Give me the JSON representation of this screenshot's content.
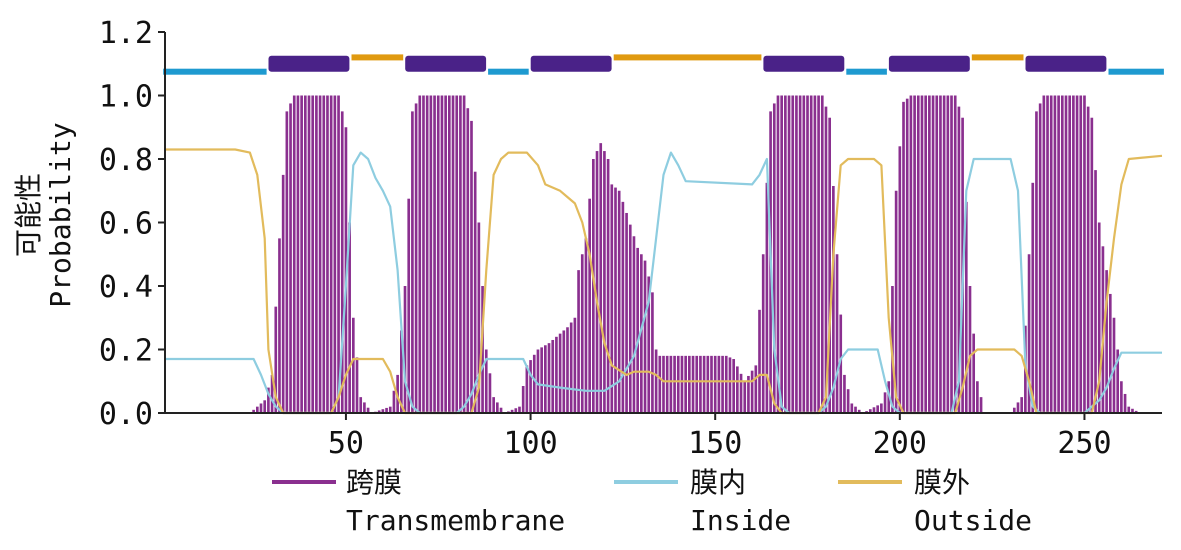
{
  "chart_data": {
    "type": "area",
    "title": "",
    "xlabel": "",
    "ylabel_cn": "可能性",
    "ylabel_en": "Probability",
    "xlim": [
      1,
      271
    ],
    "ylim": [
      0,
      1.2
    ],
    "xticks": [
      50,
      100,
      150,
      200,
      250
    ],
    "yticks": [
      "0.0",
      "0.2",
      "0.4",
      "0.6",
      "0.8",
      "1.0",
      "1.2"
    ],
    "grid": false,
    "legend_position": "bottom",
    "colors": {
      "transmembrane": "#8a2f8f",
      "inside": "#8ecde0",
      "outside": "#e2bb5c",
      "topology_inside": "#1e9ad0",
      "topology_outside": "#e09a10",
      "topology_tm": "#4a2288"
    },
    "legend": [
      {
        "key": "transmembrane",
        "label_cn": "跨膜",
        "label_en": "Transmembrane"
      },
      {
        "key": "inside",
        "label_cn": "膜内",
        "label_en": "Inside"
      },
      {
        "key": "outside",
        "label_cn": "膜外",
        "label_en": "Outside"
      }
    ],
    "topology": [
      {
        "type": "inside",
        "start": 1,
        "end": 28
      },
      {
        "type": "tm",
        "start": 29,
        "end": 51
      },
      {
        "type": "outside",
        "start": 52,
        "end": 65
      },
      {
        "type": "tm",
        "start": 66,
        "end": 88
      },
      {
        "type": "inside",
        "start": 89,
        "end": 99
      },
      {
        "type": "tm",
        "start": 100,
        "end": 122
      },
      {
        "type": "outside",
        "start": 123,
        "end": 162
      },
      {
        "type": "tm",
        "start": 163,
        "end": 185
      },
      {
        "type": "inside",
        "start": 186,
        "end": 196
      },
      {
        "type": "tm",
        "start": 197,
        "end": 219
      },
      {
        "type": "outside",
        "start": 220,
        "end": 233
      },
      {
        "type": "tm",
        "start": 234,
        "end": 256
      },
      {
        "type": "inside",
        "start": 257,
        "end": 271
      }
    ],
    "series": [
      {
        "key": "transmembrane",
        "points": [
          [
            1,
            0
          ],
          [
            24,
            0
          ],
          [
            28,
            0.04
          ],
          [
            30,
            0.12
          ],
          [
            32,
            0.55
          ],
          [
            34,
            0.95
          ],
          [
            36,
            1.0
          ],
          [
            48,
            1.0
          ],
          [
            50,
            0.9
          ],
          [
            52,
            0.3
          ],
          [
            54,
            0.05
          ],
          [
            57,
            0.0
          ],
          [
            62,
            0.02
          ],
          [
            64,
            0.12
          ],
          [
            66,
            0.4
          ],
          [
            68,
            0.95
          ],
          [
            70,
            1.0
          ],
          [
            82,
            1.0
          ],
          [
            84,
            0.92
          ],
          [
            86,
            0.6
          ],
          [
            88,
            0.2
          ],
          [
            90,
            0.05
          ],
          [
            93,
            0.0
          ],
          [
            97,
            0.02
          ],
          [
            99,
            0.15
          ],
          [
            102,
            0.2
          ],
          [
            105,
            0.22
          ],
          [
            110,
            0.27
          ],
          [
            112,
            0.3
          ],
          [
            113,
            0.45
          ],
          [
            115,
            0.55
          ],
          [
            117,
            0.8
          ],
          [
            119,
            0.85
          ],
          [
            121,
            0.8
          ],
          [
            122,
            0.72
          ],
          [
            124,
            0.7
          ],
          [
            126,
            0.63
          ],
          [
            129,
            0.52
          ],
          [
            131,
            0.48
          ],
          [
            133,
            0.38
          ],
          [
            134,
            0.2
          ],
          [
            135,
            0.18
          ],
          [
            153,
            0.18
          ],
          [
            155,
            0.17
          ],
          [
            158,
            0.1
          ],
          [
            161,
            0.15
          ],
          [
            163,
            0.5
          ],
          [
            165,
            0.95
          ],
          [
            167,
            1.0
          ],
          [
            179,
            1.0
          ],
          [
            181,
            0.93
          ],
          [
            183,
            0.5
          ],
          [
            185,
            0.12
          ],
          [
            187,
            0.03
          ],
          [
            190,
            0.0
          ],
          [
            195,
            0.03
          ],
          [
            197,
            0.1
          ],
          [
            199,
            0.7
          ],
          [
            201,
            0.98
          ],
          [
            203,
            1.0
          ],
          [
            215,
            1.0
          ],
          [
            217,
            0.93
          ],
          [
            219,
            0.4
          ],
          [
            221,
            0.1
          ],
          [
            223,
            0.0
          ],
          [
            230,
            0.0
          ],
          [
            233,
            0.05
          ],
          [
            235,
            0.5
          ],
          [
            237,
            0.95
          ],
          [
            239,
            1.0
          ],
          [
            250,
            1.0
          ],
          [
            252,
            0.93
          ],
          [
            254,
            0.6
          ],
          [
            256,
            0.45
          ],
          [
            258,
            0.3
          ],
          [
            260,
            0.1
          ],
          [
            262,
            0.02
          ],
          [
            265,
            0.0
          ],
          [
            271,
            0
          ]
        ]
      },
      {
        "key": "inside",
        "points": [
          [
            1,
            0.17
          ],
          [
            25,
            0.17
          ],
          [
            27,
            0.12
          ],
          [
            29,
            0.06
          ],
          [
            31,
            0.02
          ],
          [
            33,
            0.0
          ],
          [
            46,
            0.0
          ],
          [
            48,
            0.05
          ],
          [
            50,
            0.4
          ],
          [
            52,
            0.78
          ],
          [
            54,
            0.82
          ],
          [
            56,
            0.8
          ],
          [
            58,
            0.74
          ],
          [
            60,
            0.7
          ],
          [
            62,
            0.65
          ],
          [
            64,
            0.45
          ],
          [
            66,
            0.1
          ],
          [
            68,
            0.02
          ],
          [
            70,
            0.0
          ],
          [
            80,
            0.0
          ],
          [
            82,
            0.02
          ],
          [
            84,
            0.06
          ],
          [
            86,
            0.12
          ],
          [
            88,
            0.17
          ],
          [
            98,
            0.17
          ],
          [
            100,
            0.12
          ],
          [
            102,
            0.09
          ],
          [
            108,
            0.08
          ],
          [
            115,
            0.07
          ],
          [
            120,
            0.07
          ],
          [
            124,
            0.1
          ],
          [
            128,
            0.18
          ],
          [
            132,
            0.35
          ],
          [
            134,
            0.55
          ],
          [
            136,
            0.75
          ],
          [
            138,
            0.82
          ],
          [
            140,
            0.78
          ],
          [
            142,
            0.73
          ],
          [
            160,
            0.72
          ],
          [
            162,
            0.75
          ],
          [
            164,
            0.8
          ],
          [
            166,
            0.2
          ],
          [
            168,
            0.02
          ],
          [
            170,
            0.0
          ],
          [
            178,
            0.0
          ],
          [
            180,
            0.02
          ],
          [
            182,
            0.08
          ],
          [
            184,
            0.17
          ],
          [
            186,
            0.2
          ],
          [
            194,
            0.2
          ],
          [
            196,
            0.1
          ],
          [
            198,
            0.02
          ],
          [
            200,
            0.0
          ],
          [
            214,
            0.0
          ],
          [
            216,
            0.1
          ],
          [
            218,
            0.7
          ],
          [
            220,
            0.8
          ],
          [
            230,
            0.8
          ],
          [
            232,
            0.7
          ],
          [
            234,
            0.15
          ],
          [
            236,
            0.02
          ],
          [
            238,
            0.0
          ],
          [
            250,
            0.0
          ],
          [
            252,
            0.02
          ],
          [
            254,
            0.04
          ],
          [
            256,
            0.08
          ],
          [
            258,
            0.14
          ],
          [
            260,
            0.19
          ],
          [
            271,
            0.19
          ]
        ]
      },
      {
        "key": "outside",
        "points": [
          [
            1,
            0.83
          ],
          [
            20,
            0.83
          ],
          [
            24,
            0.82
          ],
          [
            26,
            0.75
          ],
          [
            28,
            0.55
          ],
          [
            29,
            0.2
          ],
          [
            31,
            0.05
          ],
          [
            33,
            0.0
          ],
          [
            46,
            0.0
          ],
          [
            48,
            0.05
          ],
          [
            50,
            0.12
          ],
          [
            52,
            0.17
          ],
          [
            60,
            0.17
          ],
          [
            62,
            0.13
          ],
          [
            64,
            0.05
          ],
          [
            66,
            0.0
          ],
          [
            84,
            0.0
          ],
          [
            86,
            0.08
          ],
          [
            88,
            0.45
          ],
          [
            90,
            0.75
          ],
          [
            92,
            0.8
          ],
          [
            94,
            0.82
          ],
          [
            99,
            0.82
          ],
          [
            102,
            0.78
          ],
          [
            104,
            0.72
          ],
          [
            108,
            0.7
          ],
          [
            110,
            0.68
          ],
          [
            112,
            0.66
          ],
          [
            114,
            0.6
          ],
          [
            116,
            0.5
          ],
          [
            118,
            0.35
          ],
          [
            120,
            0.22
          ],
          [
            122,
            0.15
          ],
          [
            126,
            0.12
          ],
          [
            128,
            0.13
          ],
          [
            132,
            0.13
          ],
          [
            134,
            0.12
          ],
          [
            136,
            0.1
          ],
          [
            160,
            0.1
          ],
          [
            162,
            0.12
          ],
          [
            164,
            0.12
          ],
          [
            166,
            0.03
          ],
          [
            168,
            0.0
          ],
          [
            178,
            0.0
          ],
          [
            180,
            0.05
          ],
          [
            182,
            0.5
          ],
          [
            184,
            0.78
          ],
          [
            186,
            0.8
          ],
          [
            193,
            0.8
          ],
          [
            195,
            0.78
          ],
          [
            197,
            0.3
          ],
          [
            199,
            0.05
          ],
          [
            201,
            0.0
          ],
          [
            215,
            0.0
          ],
          [
            217,
            0.08
          ],
          [
            219,
            0.18
          ],
          [
            221,
            0.2
          ],
          [
            231,
            0.2
          ],
          [
            233,
            0.18
          ],
          [
            235,
            0.1
          ],
          [
            237,
            0.0
          ],
          [
            252,
            0.0
          ],
          [
            254,
            0.1
          ],
          [
            256,
            0.35
          ],
          [
            258,
            0.55
          ],
          [
            260,
            0.72
          ],
          [
            262,
            0.8
          ],
          [
            271,
            0.81
          ]
        ]
      }
    ]
  }
}
